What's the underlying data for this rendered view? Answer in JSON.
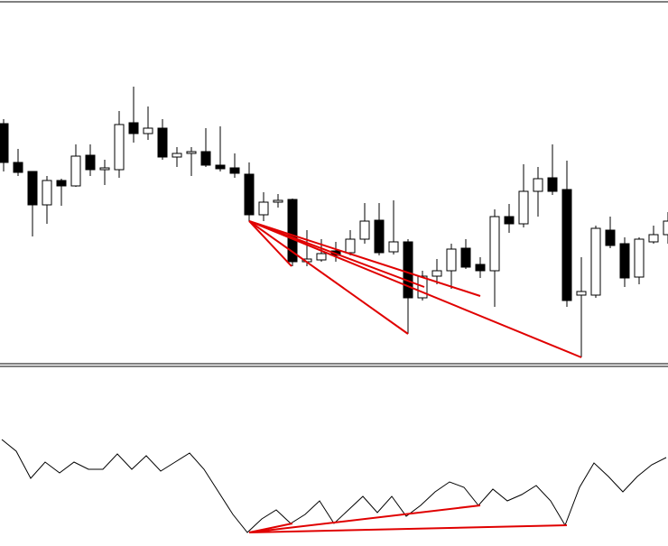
{
  "chart_data": [
    {
      "type": "candlestick",
      "open": [
        263,
        220,
        210,
        173,
        200,
        194,
        228,
        212,
        212,
        264,
        252,
        258,
        226,
        230,
        232,
        217,
        214,
        207,
        162,
        176,
        179,
        110,
        112,
        122,
        120,
        135,
        156,
        121,
        132,
        70,
        94,
        100,
        125,
        107,
        100,
        160,
        152,
        188,
        203,
        190,
        73,
        73,
        145,
        130,
        93,
        132,
        140
      ],
      "high": [
        268,
        235,
        210,
        205,
        202,
        240,
        240,
        223,
        277,
        304,
        282,
        268,
        237,
        237,
        258,
        260,
        230,
        220,
        187,
        185,
        180,
        145,
        135,
        132,
        145,
        175,
        175,
        178,
        135,
        100,
        113,
        130,
        135,
        115,
        168,
        174,
        218,
        215,
        240,
        222,
        115,
        150,
        160,
        137,
        137,
        150,
        165
      ],
      "low": [
        210,
        205,
        138,
        152,
        172,
        193,
        205,
        195,
        203,
        242,
        245,
        223,
        215,
        205,
        215,
        210,
        203,
        155,
        155,
        170,
        105,
        105,
        110,
        110,
        117,
        130,
        117,
        118,
        30,
        67,
        85,
        80,
        102,
        92,
        60,
        142,
        148,
        160,
        184,
        60,
        4,
        70,
        125,
        82,
        85,
        130,
        130
      ],
      "close": [
        220,
        209,
        173,
        200,
        194,
        227,
        212,
        214,
        262,
        252,
        258,
        226,
        230,
        232,
        217,
        213,
        208,
        162,
        176,
        178,
        110,
        113,
        119,
        117,
        135,
        155,
        120,
        132,
        70,
        94,
        100,
        124,
        104,
        100,
        160,
        152,
        188,
        202,
        188,
        67,
        77,
        147,
        128,
        92,
        135,
        140,
        155
      ],
      "up_color": "#ffffff",
      "down_color": "#000000",
      "edge_color": "#000000",
      "ylim": [
        0,
        400
      ]
    },
    {
      "type": "line",
      "values": [
        113,
        100,
        70,
        88,
        76,
        88,
        80,
        80,
        97,
        80,
        95,
        78,
        88,
        98,
        80,
        55,
        30,
        10,
        25,
        35,
        20,
        30,
        45,
        20,
        35,
        50,
        32,
        50,
        28,
        40,
        55,
        66,
        60,
        40,
        58,
        45,
        52,
        62,
        45,
        18,
        60,
        87,
        72,
        55,
        72,
        85,
        93
      ],
      "color": "#000000",
      "ylim": [
        0,
        190
      ]
    }
  ]
}
